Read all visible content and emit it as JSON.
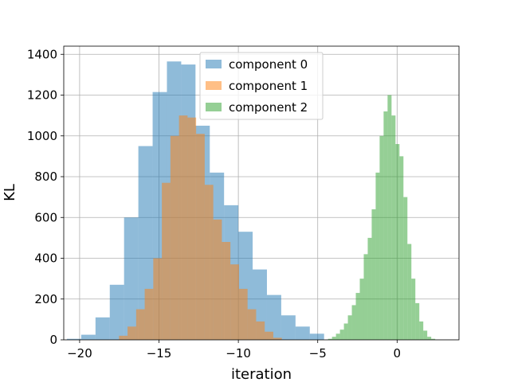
{
  "chart_data": {
    "type": "bar",
    "xlabel": "iteration",
    "ylabel": "KL",
    "xlim": [
      -21.0,
      3.9
    ],
    "ylim": [
      0,
      1440
    ],
    "xticks": [
      -20,
      -15,
      -10,
      -5,
      0
    ],
    "yticks": [
      0,
      200,
      400,
      600,
      800,
      1000,
      1200,
      1400
    ],
    "grid": true,
    "legend": "top-center",
    "series": [
      {
        "name": "component 0",
        "color": "#1f77b4",
        "opacity": 0.5,
        "bin_width": 0.9,
        "bin_starts": [
          -20.8,
          -19.9,
          -19.0,
          -18.1,
          -17.2,
          -16.3,
          -15.4,
          -14.5,
          -13.6,
          -12.7,
          -11.8,
          -10.9,
          -10.0,
          -9.1,
          -8.2,
          -7.3,
          -6.4,
          -5.5
        ],
        "values": [
          5,
          25,
          110,
          270,
          600,
          950,
          1215,
          1365,
          1350,
          1050,
          820,
          660,
          530,
          345,
          220,
          120,
          65,
          30
        ]
      },
      {
        "name": "component 1",
        "color": "#ff7f0e",
        "opacity": 0.5,
        "bin_width": 0.54,
        "bin_starts": [
          -17.52,
          -16.98,
          -16.44,
          -15.9,
          -15.36,
          -14.82,
          -14.28,
          -13.74,
          -13.2,
          -12.66,
          -12.12,
          -11.58,
          -11.04,
          -10.5,
          -9.96,
          -9.42,
          -8.88,
          -8.34,
          -7.8
        ],
        "values": [
          20,
          65,
          150,
          250,
          400,
          770,
          1000,
          1100,
          1090,
          1010,
          760,
          590,
          480,
          370,
          250,
          150,
          90,
          40,
          10
        ]
      },
      {
        "name": "component 2",
        "color": "#2ca02c",
        "opacity": 0.5,
        "bin_width": 0.25,
        "bin_starts": [
          -4.35,
          -4.1,
          -3.85,
          -3.6,
          -3.35,
          -3.1,
          -2.85,
          -2.6,
          -2.35,
          -2.1,
          -1.85,
          -1.6,
          -1.35,
          -1.1,
          -0.85,
          -0.6,
          -0.35,
          -0.1,
          0.15,
          0.4,
          0.65,
          0.9,
          1.15,
          1.4,
          1.65,
          1.9,
          2.15
        ],
        "values": [
          5,
          15,
          30,
          50,
          80,
          120,
          170,
          230,
          300,
          420,
          500,
          640,
          820,
          1000,
          1120,
          1200,
          1100,
          960,
          900,
          700,
          470,
          300,
          180,
          90,
          45,
          15,
          5
        ]
      }
    ]
  }
}
